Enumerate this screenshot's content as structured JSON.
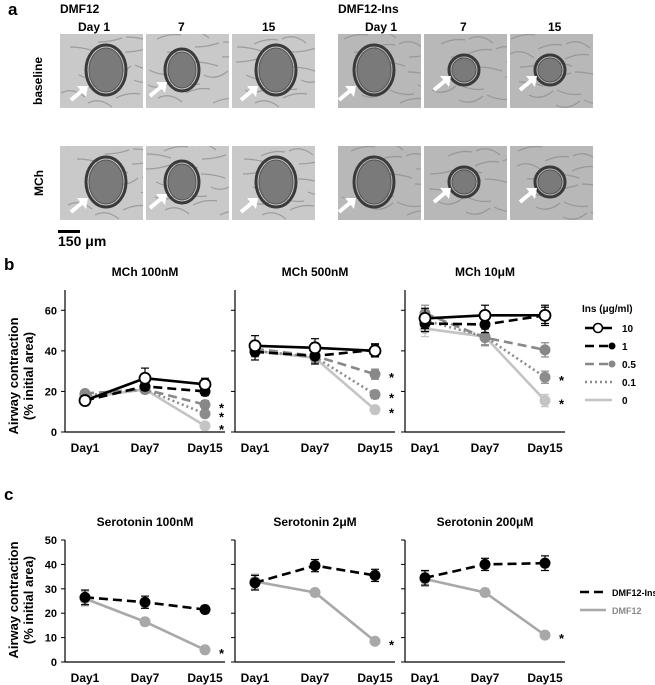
{
  "panel_a": {
    "letter": "a",
    "left_group_title": "DMF12",
    "right_group_title": "DMF12-Ins",
    "day_headers": [
      "Day  1",
      "7",
      "15"
    ],
    "row_labels": [
      "baseline",
      "MCh"
    ],
    "scale_bar_label": "150 μm",
    "tile_count": 12
  },
  "panel_b": {
    "letter": "b",
    "ylabel_line1": "Airway contraction",
    "ylabel_line2": "(% initial area)",
    "legend_title": "Ins (μg/ml)",
    "legend_entries": [
      "10",
      "1",
      "0.5",
      "0.1",
      "0"
    ],
    "significance_marker": "*"
  },
  "panel_c": {
    "letter": "c",
    "ylabel_line1": "Airway contraction",
    "ylabel_line2": "(% initial area)",
    "legend_entries": [
      "DMF12-Ins",
      "DMF12"
    ],
    "significance_marker": "*"
  },
  "colors": {
    "ins10": "#000000",
    "ins1": "#000000",
    "ins05": "#888888",
    "ins01": "#8c8c8c",
    "ins0": "#c4c4c4",
    "dmf12": "#a8a8a8"
  },
  "chart_data": [
    {
      "type": "line",
      "title": "MCh 100nM",
      "categories": [
        "Day1",
        "Day7",
        "Day15"
      ],
      "ylim": [
        0,
        70
      ],
      "yticks": [
        0,
        20,
        40,
        60
      ],
      "series": [
        {
          "name": "10",
          "values": [
            15.5,
            26.5,
            23.5
          ],
          "err": [
            1.5,
            5,
            3
          ]
        },
        {
          "name": "1",
          "values": [
            15.5,
            22.5,
            20
          ],
          "err": [
            1,
            2,
            2
          ]
        },
        {
          "name": "0.5",
          "values": [
            19,
            21,
            13.5
          ],
          "err": [
            1,
            2,
            2
          ]
        },
        {
          "name": "0.1",
          "values": [
            18,
            21,
            9
          ],
          "err": [
            1,
            2,
            1.5
          ]
        },
        {
          "name": "0",
          "values": [
            17,
            21,
            3
          ],
          "err": [
            1,
            2,
            1
          ]
        }
      ],
      "significant": [
        "0.5",
        "0.1",
        "0"
      ]
    },
    {
      "type": "line",
      "title": "MCh 500nM",
      "categories": [
        "Day1",
        "Day7",
        "Day15"
      ],
      "ylim": [
        0,
        70
      ],
      "yticks": [
        0,
        20,
        40,
        60
      ],
      "series": [
        {
          "name": "10",
          "values": [
            42.5,
            41.5,
            40
          ],
          "err": [
            5,
            4.5,
            3
          ]
        },
        {
          "name": "1",
          "values": [
            39.5,
            37.5,
            40.5
          ],
          "err": [
            4,
            4,
            3
          ]
        },
        {
          "name": "0.5",
          "values": [
            41,
            37.5,
            28.5
          ],
          "err": [
            3,
            3,
            2.5
          ]
        },
        {
          "name": "0.1",
          "values": [
            40,
            37,
            18.5
          ],
          "err": [
            3,
            3,
            2
          ]
        },
        {
          "name": "0",
          "values": [
            40,
            36.5,
            11
          ],
          "err": [
            3,
            3,
            1.5
          ]
        }
      ],
      "significant": [
        "0.5",
        "0.1",
        "0"
      ]
    },
    {
      "type": "line",
      "title": "MCh 10μM",
      "categories": [
        "Day1",
        "Day7",
        "Day15"
      ],
      "ylim": [
        0,
        70
      ],
      "yticks": [
        0,
        20,
        40,
        60
      ],
      "series": [
        {
          "name": "10",
          "values": [
            56,
            57.5,
            57.5
          ],
          "err": [
            5,
            5,
            5
          ]
        },
        {
          "name": "1",
          "values": [
            53.5,
            53,
            57.5
          ],
          "err": [
            4,
            4,
            4
          ]
        },
        {
          "name": "0.5",
          "values": [
            58.5,
            46.5,
            40.5
          ],
          "err": [
            4,
            4,
            3.5
          ]
        },
        {
          "name": "0.1",
          "values": [
            55,
            47,
            27
          ],
          "err": [
            4,
            4,
            3
          ]
        },
        {
          "name": "0",
          "values": [
            51,
            47,
            15.5
          ],
          "err": [
            4,
            4,
            3
          ]
        }
      ],
      "significant": [
        "0.1",
        "0"
      ]
    },
    {
      "type": "line",
      "title": "Serotonin 100nM",
      "categories": [
        "Day1",
        "Day7",
        "Day15"
      ],
      "ylim": [
        0,
        50
      ],
      "yticks": [
        0,
        10,
        20,
        30,
        40,
        50
      ],
      "series": [
        {
          "name": "DMF12-Ins",
          "values": [
            26.5,
            24.5,
            21.5
          ],
          "err": [
            3,
            2.5,
            1.5
          ]
        },
        {
          "name": "DMF12",
          "values": [
            26,
            16.5,
            5
          ],
          "err": [
            3,
            1.5,
            1
          ]
        }
      ],
      "significant": [
        "DMF12"
      ]
    },
    {
      "type": "line",
      "title": "Serotonin 2μM",
      "categories": [
        "Day1",
        "Day7",
        "Day15"
      ],
      "ylim": [
        0,
        50
      ],
      "yticks": [
        0,
        10,
        20,
        30,
        40,
        50
      ],
      "series": [
        {
          "name": "DMF12-Ins",
          "values": [
            32.5,
            39.5,
            35.5
          ],
          "err": [
            3,
            2.5,
            2.5
          ]
        },
        {
          "name": "DMF12",
          "values": [
            33,
            28.5,
            8.5
          ],
          "err": [
            3,
            1.5,
            1
          ]
        }
      ],
      "significant": [
        "DMF12"
      ]
    },
    {
      "type": "line",
      "title": "Serotonin 200μM",
      "categories": [
        "Day1",
        "Day7",
        "Day15"
      ],
      "ylim": [
        0,
        50
      ],
      "yticks": [
        0,
        10,
        20,
        30,
        40,
        50
      ],
      "series": [
        {
          "name": "DMF12-Ins",
          "values": [
            34.5,
            40,
            40.5
          ],
          "err": [
            3,
            2.5,
            3
          ]
        },
        {
          "name": "DMF12",
          "values": [
            34,
            28.5,
            11
          ],
          "err": [
            3,
            1.5,
            1
          ]
        }
      ],
      "significant": [
        "DMF12"
      ]
    }
  ]
}
